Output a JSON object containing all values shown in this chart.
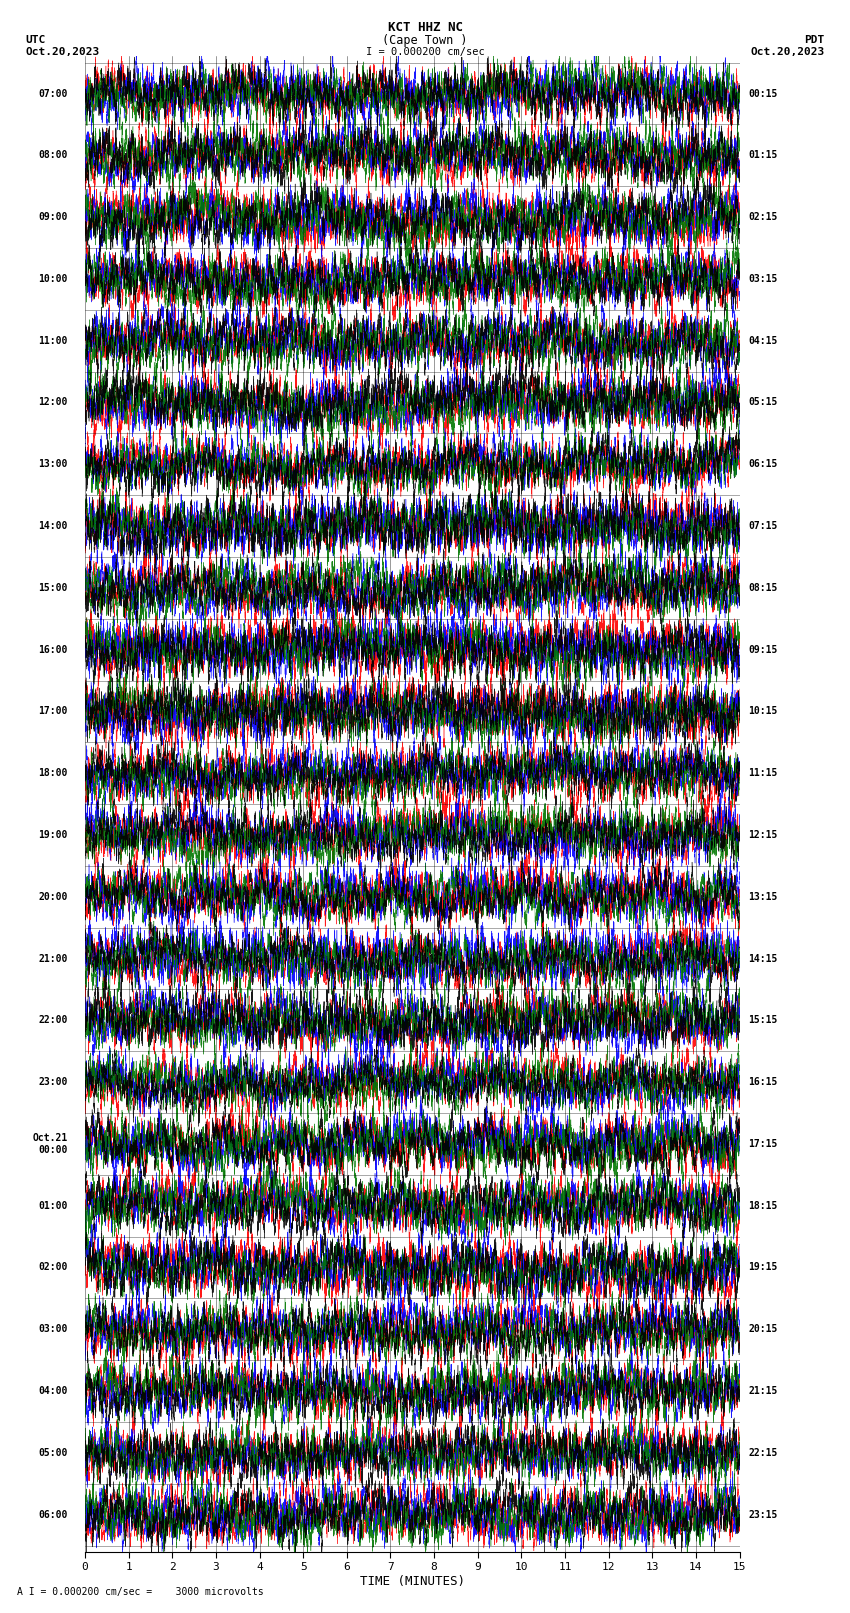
{
  "title_line1": "KCT HHZ NC",
  "title_line2": "(Cape Town )",
  "scale_label": "I = 0.000200 cm/sec",
  "left_label": "UTC",
  "left_date": "Oct.20,2023",
  "right_label": "PDT",
  "right_date": "Oct.20,2023",
  "bottom_label": "TIME (MINUTES)",
  "bottom_note": "A I = 0.000200 cm/sec =    3000 microvolts",
  "utc_times": [
    "07:00",
    "08:00",
    "09:00",
    "10:00",
    "11:00",
    "12:00",
    "13:00",
    "14:00",
    "15:00",
    "16:00",
    "17:00",
    "18:00",
    "19:00",
    "20:00",
    "21:00",
    "22:00",
    "23:00",
    "Oct.21\n00:00",
    "01:00",
    "02:00",
    "03:00",
    "04:00",
    "05:00",
    "06:00"
  ],
  "pdt_times": [
    "00:15",
    "01:15",
    "02:15",
    "03:15",
    "04:15",
    "05:15",
    "06:15",
    "07:15",
    "08:15",
    "09:15",
    "10:15",
    "11:15",
    "12:15",
    "13:15",
    "14:15",
    "15:15",
    "16:15",
    "17:15",
    "18:15",
    "19:15",
    "20:15",
    "21:15",
    "22:15",
    "23:15"
  ],
  "n_rows": 24,
  "n_minutes": 15,
  "colors": [
    "#ff0000",
    "#0000ff",
    "#007700",
    "#000000"
  ],
  "bg_color": "#ffffff",
  "seed": 42
}
